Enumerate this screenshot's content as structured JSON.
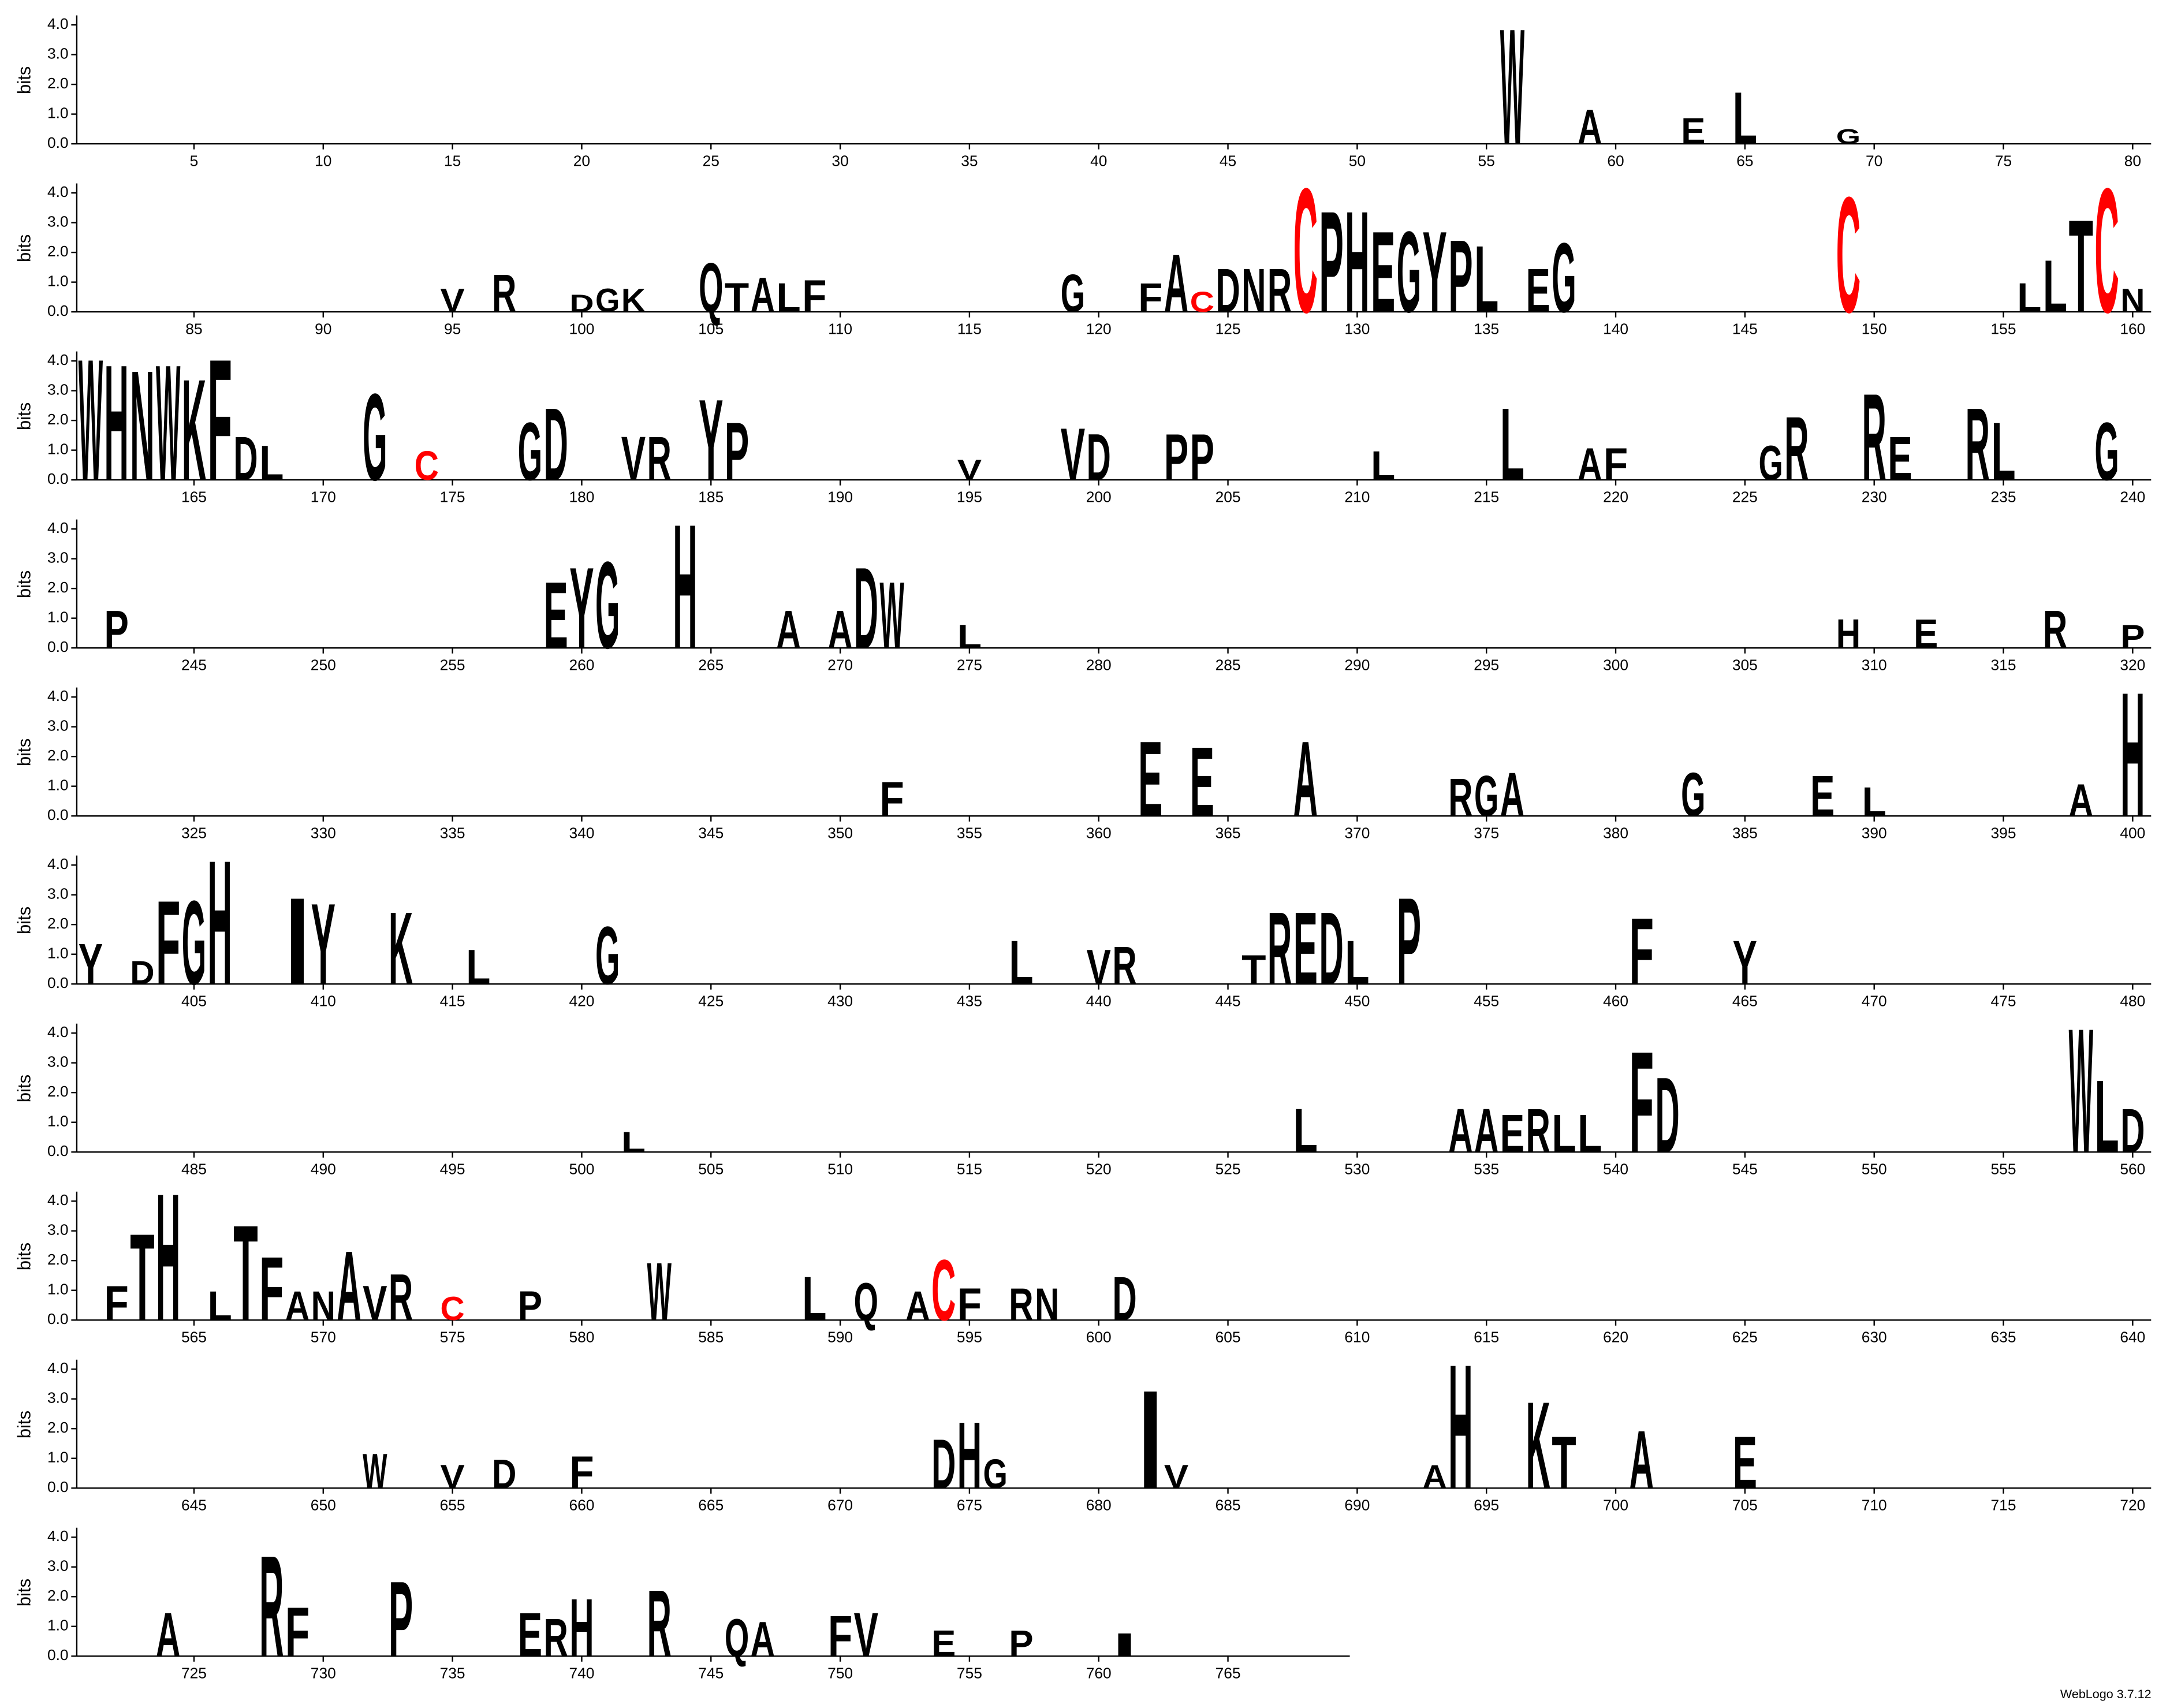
{
  "chart_data": {
    "type": "logo",
    "ylabel": "bits",
    "footer": "WebLogo 3.7.12",
    "xlim": [
      1,
      769
    ],
    "ylim": [
      0,
      4.32
    ],
    "yticks": [
      {
        "value": 0,
        "label": "0.0"
      },
      {
        "value": 1,
        "label": "1.0"
      },
      {
        "value": 2,
        "label": "2.0"
      },
      {
        "value": 3,
        "label": "3.0"
      },
      {
        "value": 4,
        "label": "4.0"
      }
    ],
    "xticks": [
      5,
      10,
      15,
      20,
      25,
      30,
      35,
      40,
      45,
      50,
      55,
      60,
      65,
      70,
      75,
      80,
      85,
      90,
      95,
      100,
      105,
      110,
      115,
      120,
      125,
      130,
      135,
      140,
      145,
      150,
      155,
      160,
      165,
      170,
      175,
      180,
      185,
      190,
      195,
      200,
      205,
      210,
      215,
      220,
      225,
      230,
      235,
      240,
      245,
      250,
      255,
      260,
      265,
      270,
      275,
      280,
      285,
      290,
      295,
      300,
      305,
      310,
      315,
      320,
      325,
      330,
      335,
      340,
      345,
      350,
      355,
      360,
      365,
      370,
      375,
      380,
      385,
      390,
      395,
      400,
      405,
      410,
      415,
      420,
      425,
      430,
      435,
      440,
      445,
      450,
      455,
      460,
      465,
      470,
      475,
      480,
      485,
      490,
      495,
      500,
      505,
      510,
      515,
      520,
      525,
      530,
      535,
      540,
      545,
      550,
      555,
      560,
      565,
      570,
      575,
      580,
      585,
      590,
      595,
      600,
      605,
      610,
      615,
      620,
      625,
      630,
      635,
      640,
      645,
      650,
      655,
      660,
      665,
      670,
      675,
      680,
      685,
      690,
      695,
      700,
      705,
      710,
      715,
      720,
      725,
      730,
      735,
      740,
      745,
      750,
      755,
      760,
      765
    ],
    "color": "#000000",
    "highlight_color": "#ff0000",
    "highlight_letter": "C",
    "letters": [
      {
        "position": 56,
        "letter": "W",
        "bits": 4.0
      },
      {
        "position": 59,
        "letter": "A",
        "bits": 1.2
      },
      {
        "position": 63,
        "letter": "E",
        "bits": 0.9
      },
      {
        "position": 65,
        "letter": "L",
        "bits": 1.8
      },
      {
        "position": 69,
        "letter": "G",
        "bits": 0.5
      },
      {
        "position": 95,
        "letter": "V",
        "bits": 0.8
      },
      {
        "position": 97,
        "letter": "R",
        "bits": 1.3
      },
      {
        "position": 100,
        "letter": "D",
        "bits": 0.6
      },
      {
        "position": 101,
        "letter": "G",
        "bits": 0.8
      },
      {
        "position": 102,
        "letter": "K",
        "bits": 0.8
      },
      {
        "position": 105,
        "letter": "Q",
        "bits": 1.7
      },
      {
        "position": 106,
        "letter": "T",
        "bits": 1.0
      },
      {
        "position": 107,
        "letter": "A",
        "bits": 1.2
      },
      {
        "position": 108,
        "letter": "L",
        "bits": 1.0
      },
      {
        "position": 109,
        "letter": "F",
        "bits": 1.1
      },
      {
        "position": 119,
        "letter": "G",
        "bits": 1.3
      },
      {
        "position": 122,
        "letter": "F",
        "bits": 1.0
      },
      {
        "position": 123,
        "letter": "A",
        "bits": 2.0
      },
      {
        "position": 124,
        "letter": "C",
        "bits": 0.7
      },
      {
        "position": 125,
        "letter": "D",
        "bits": 1.5
      },
      {
        "position": 126,
        "letter": "N",
        "bits": 1.5
      },
      {
        "position": 127,
        "letter": "R",
        "bits": 1.5
      },
      {
        "position": 128,
        "letter": "C",
        "bits": 4.3
      },
      {
        "position": 129,
        "letter": "P",
        "bits": 3.5
      },
      {
        "position": 130,
        "letter": "H",
        "bits": 3.5
      },
      {
        "position": 131,
        "letter": "E",
        "bits": 2.8
      },
      {
        "position": 132,
        "letter": "G",
        "bits": 2.8
      },
      {
        "position": 133,
        "letter": "Y",
        "bits": 2.8
      },
      {
        "position": 134,
        "letter": "P",
        "bits": 2.5
      },
      {
        "position": 135,
        "letter": "L",
        "bits": 2.3
      },
      {
        "position": 137,
        "letter": "E",
        "bits": 1.5
      },
      {
        "position": 138,
        "letter": "G",
        "bits": 2.4
      },
      {
        "position": 149,
        "letter": "C",
        "bits": 4.0
      },
      {
        "position": 156,
        "letter": "L",
        "bits": 1.0
      },
      {
        "position": 157,
        "letter": "L",
        "bits": 1.8
      },
      {
        "position": 158,
        "letter": "T",
        "bits": 3.2
      },
      {
        "position": 159,
        "letter": "C",
        "bits": 4.3
      },
      {
        "position": 160,
        "letter": "N",
        "bits": 0.8
      },
      {
        "position": 161,
        "letter": "W",
        "bits": 4.2
      },
      {
        "position": 162,
        "letter": "H",
        "bits": 4.0
      },
      {
        "position": 163,
        "letter": "N",
        "bits": 3.8
      },
      {
        "position": 164,
        "letter": "W",
        "bits": 4.0
      },
      {
        "position": 165,
        "letter": "K",
        "bits": 3.5
      },
      {
        "position": 166,
        "letter": "F",
        "bits": 4.2
      },
      {
        "position": 167,
        "letter": "D",
        "bits": 1.5
      },
      {
        "position": 168,
        "letter": "L",
        "bits": 1.2
      },
      {
        "position": 172,
        "letter": "G",
        "bits": 3.0
      },
      {
        "position": 174,
        "letter": "C",
        "bits": 1.0
      },
      {
        "position": 178,
        "letter": "G",
        "bits": 2.0
      },
      {
        "position": 179,
        "letter": "D",
        "bits": 2.5
      },
      {
        "position": 182,
        "letter": "V",
        "bits": 1.5
      },
      {
        "position": 183,
        "letter": "R",
        "bits": 1.5
      },
      {
        "position": 185,
        "letter": "Y",
        "bits": 2.8
      },
      {
        "position": 186,
        "letter": "P",
        "bits": 2.0
      },
      {
        "position": 195,
        "letter": "V",
        "bits": 0.7
      },
      {
        "position": 199,
        "letter": "V",
        "bits": 1.8
      },
      {
        "position": 200,
        "letter": "D",
        "bits": 1.6
      },
      {
        "position": 203,
        "letter": "P",
        "bits": 1.6
      },
      {
        "position": 204,
        "letter": "P",
        "bits": 1.6
      },
      {
        "position": 211,
        "letter": "L",
        "bits": 1.0
      },
      {
        "position": 216,
        "letter": "L",
        "bits": 2.5
      },
      {
        "position": 219,
        "letter": "A",
        "bits": 1.1
      },
      {
        "position": 220,
        "letter": "F",
        "bits": 1.1
      },
      {
        "position": 226,
        "letter": "G",
        "bits": 1.2
      },
      {
        "position": 227,
        "letter": "R",
        "bits": 2.2
      },
      {
        "position": 230,
        "letter": "R",
        "bits": 3.0
      },
      {
        "position": 231,
        "letter": "E",
        "bits": 1.5
      },
      {
        "position": 234,
        "letter": "R",
        "bits": 2.5
      },
      {
        "position": 235,
        "letter": "L",
        "bits": 2.0
      },
      {
        "position": 239,
        "letter": "G",
        "bits": 2.0
      },
      {
        "position": 242,
        "letter": "P",
        "bits": 1.3
      },
      {
        "position": 259,
        "letter": "E",
        "bits": 2.3
      },
      {
        "position": 260,
        "letter": "Y",
        "bits": 2.8
      },
      {
        "position": 261,
        "letter": "G",
        "bits": 3.0
      },
      {
        "position": 264,
        "letter": "H",
        "bits": 4.3
      },
      {
        "position": 268,
        "letter": "A",
        "bits": 1.3
      },
      {
        "position": 270,
        "letter": "A",
        "bits": 1.3
      },
      {
        "position": 271,
        "letter": "D",
        "bits": 2.8
      },
      {
        "position": 272,
        "letter": "W",
        "bits": 2.3
      },
      {
        "position": 275,
        "letter": "L",
        "bits": 0.8
      },
      {
        "position": 309,
        "letter": "H",
        "bits": 1.0
      },
      {
        "position": 312,
        "letter": "E",
        "bits": 1.0
      },
      {
        "position": 317,
        "letter": "R",
        "bits": 1.3
      },
      {
        "position": 320,
        "letter": "P",
        "bits": 0.8
      },
      {
        "position": 352,
        "letter": "F",
        "bits": 1.2
      },
      {
        "position": 362,
        "letter": "E",
        "bits": 2.6
      },
      {
        "position": 364,
        "letter": "E",
        "bits": 2.4
      },
      {
        "position": 368,
        "letter": "A",
        "bits": 2.6
      },
      {
        "position": 374,
        "letter": "R",
        "bits": 1.3
      },
      {
        "position": 375,
        "letter": "G",
        "bits": 1.4
      },
      {
        "position": 376,
        "letter": "A",
        "bits": 1.5
      },
      {
        "position": 383,
        "letter": "G",
        "bits": 1.5
      },
      {
        "position": 388,
        "letter": "E",
        "bits": 1.4
      },
      {
        "position": 390,
        "letter": "L",
        "bits": 1.0
      },
      {
        "position": 398,
        "letter": "A",
        "bits": 1.1
      },
      {
        "position": 400,
        "letter": "H",
        "bits": 4.3
      },
      {
        "position": 401,
        "letter": "Y",
        "bits": 1.4
      },
      {
        "position": 403,
        "letter": "D",
        "bits": 0.8
      },
      {
        "position": 404,
        "letter": "F",
        "bits": 2.9
      },
      {
        "position": 405,
        "letter": "G",
        "bits": 2.9
      },
      {
        "position": 406,
        "letter": "H",
        "bits": 4.3
      },
      {
        "position": 409,
        "letter": "I",
        "bits": 3.0
      },
      {
        "position": 410,
        "letter": "Y",
        "bits": 2.8
      },
      {
        "position": 413,
        "letter": "K",
        "bits": 2.5
      },
      {
        "position": 416,
        "letter": "L",
        "bits": 1.2
      },
      {
        "position": 421,
        "letter": "G",
        "bits": 2.0
      },
      {
        "position": 437,
        "letter": "L",
        "bits": 1.5
      },
      {
        "position": 440,
        "letter": "V",
        "bits": 1.2
      },
      {
        "position": 441,
        "letter": "R",
        "bits": 1.3
      },
      {
        "position": 446,
        "letter": "T",
        "bits": 1.0
      },
      {
        "position": 447,
        "letter": "R",
        "bits": 2.5
      },
      {
        "position": 448,
        "letter": "E",
        "bits": 2.5
      },
      {
        "position": 449,
        "letter": "D",
        "bits": 2.5
      },
      {
        "position": 450,
        "letter": "L",
        "bits": 1.5
      },
      {
        "position": 452,
        "letter": "P",
        "bits": 3.0
      },
      {
        "position": 461,
        "letter": "F",
        "bits": 2.3
      },
      {
        "position": 465,
        "letter": "Y",
        "bits": 1.5
      },
      {
        "position": 502,
        "letter": "L",
        "bits": 0.7
      },
      {
        "position": 528,
        "letter": "L",
        "bits": 1.5
      },
      {
        "position": 534,
        "letter": "A",
        "bits": 1.5
      },
      {
        "position": 535,
        "letter": "A",
        "bits": 1.5
      },
      {
        "position": 536,
        "letter": "E",
        "bits": 1.3
      },
      {
        "position": 537,
        "letter": "R",
        "bits": 1.5
      },
      {
        "position": 538,
        "letter": "L",
        "bits": 1.3
      },
      {
        "position": 539,
        "letter": "L",
        "bits": 1.3
      },
      {
        "position": 541,
        "letter": "F",
        "bits": 3.5
      },
      {
        "position": 542,
        "letter": "D",
        "bits": 2.6
      },
      {
        "position": 558,
        "letter": "W",
        "bits": 4.3
      },
      {
        "position": 559,
        "letter": "L",
        "bits": 2.5
      },
      {
        "position": 560,
        "letter": "D",
        "bits": 1.5
      },
      {
        "position": 562,
        "letter": "F",
        "bits": 1.2
      },
      {
        "position": 563,
        "letter": "T",
        "bits": 3.0
      },
      {
        "position": 564,
        "letter": "H",
        "bits": 4.4
      },
      {
        "position": 566,
        "letter": "L",
        "bits": 1.0
      },
      {
        "position": 567,
        "letter": "T",
        "bits": 3.3
      },
      {
        "position": 568,
        "letter": "F",
        "bits": 2.2
      },
      {
        "position": 569,
        "letter": "A",
        "bits": 1.0
      },
      {
        "position": 570,
        "letter": "N",
        "bits": 1.0
      },
      {
        "position": 571,
        "letter": "A",
        "bits": 2.4
      },
      {
        "position": 572,
        "letter": "V",
        "bits": 1.2
      },
      {
        "position": 573,
        "letter": "R",
        "bits": 1.6
      },
      {
        "position": 575,
        "letter": "C",
        "bits": 0.8
      },
      {
        "position": 578,
        "letter": "P",
        "bits": 1.0
      },
      {
        "position": 583,
        "letter": "W",
        "bits": 2.0
      },
      {
        "position": 589,
        "letter": "L",
        "bits": 1.5
      },
      {
        "position": 591,
        "letter": "Q",
        "bits": 1.3
      },
      {
        "position": 593,
        "letter": "A",
        "bits": 1.0
      },
      {
        "position": 594,
        "letter": "C",
        "bits": 2.1
      },
      {
        "position": 595,
        "letter": "F",
        "bits": 1.1
      },
      {
        "position": 597,
        "letter": "R",
        "bits": 1.1
      },
      {
        "position": 598,
        "letter": "N",
        "bits": 1.1
      },
      {
        "position": 601,
        "letter": "D",
        "bits": 1.5
      },
      {
        "position": 652,
        "letter": "W",
        "bits": 1.2
      },
      {
        "position": 655,
        "letter": "V",
        "bits": 0.8
      },
      {
        "position": 657,
        "letter": "D",
        "bits": 1.0
      },
      {
        "position": 660,
        "letter": "F",
        "bits": 1.1
      },
      {
        "position": 674,
        "letter": "D",
        "bits": 1.7
      },
      {
        "position": 675,
        "letter": "H",
        "bits": 2.3
      },
      {
        "position": 676,
        "letter": "G",
        "bits": 1.0
      },
      {
        "position": 682,
        "letter": "I",
        "bits": 3.4
      },
      {
        "position": 683,
        "letter": "V",
        "bits": 0.8
      },
      {
        "position": 693,
        "letter": "A",
        "bits": 0.8
      },
      {
        "position": 694,
        "letter": "H",
        "bits": 4.3
      },
      {
        "position": 697,
        "letter": "K",
        "bits": 3.0
      },
      {
        "position": 698,
        "letter": "T",
        "bits": 1.8
      },
      {
        "position": 701,
        "letter": "A",
        "bits": 2.0
      },
      {
        "position": 705,
        "letter": "E",
        "bits": 1.8
      },
      {
        "position": 724,
        "letter": "A",
        "bits": 1.5
      },
      {
        "position": 728,
        "letter": "R",
        "bits": 3.5
      },
      {
        "position": 729,
        "letter": "F",
        "bits": 1.7
      },
      {
        "position": 733,
        "letter": "P",
        "bits": 2.6
      },
      {
        "position": 738,
        "letter": "E",
        "bits": 1.5
      },
      {
        "position": 739,
        "letter": "R",
        "bits": 1.3
      },
      {
        "position": 740,
        "letter": "H",
        "bits": 2.0
      },
      {
        "position": 743,
        "letter": "R",
        "bits": 2.3
      },
      {
        "position": 746,
        "letter": "Q",
        "bits": 1.3
      },
      {
        "position": 747,
        "letter": "A",
        "bits": 1.2
      },
      {
        "position": 750,
        "letter": "F",
        "bits": 1.4
      },
      {
        "position": 751,
        "letter": "V",
        "bits": 1.5
      },
      {
        "position": 754,
        "letter": "E",
        "bits": 0.9
      },
      {
        "position": 757,
        "letter": "P",
        "bits": 0.9
      },
      {
        "position": 761,
        "letter": "I",
        "bits": 0.8
      }
    ]
  }
}
